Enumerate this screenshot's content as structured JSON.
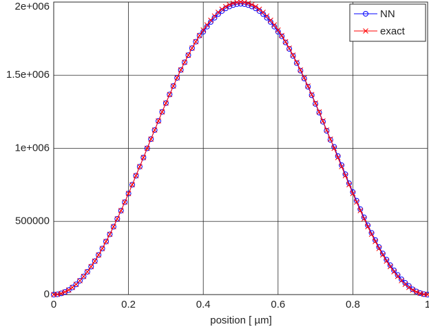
{
  "chart_data": {
    "type": "line",
    "xlabel": "position [  µm]",
    "x": [
      0,
      0.01,
      0.02,
      0.03,
      0.04,
      0.05,
      0.06,
      0.07,
      0.08,
      0.09,
      0.1,
      0.11,
      0.12,
      0.13,
      0.14,
      0.15,
      0.16,
      0.17,
      0.18,
      0.19,
      0.2,
      0.21,
      0.22,
      0.23,
      0.24,
      0.25,
      0.26,
      0.27,
      0.28,
      0.29,
      0.3,
      0.31,
      0.32,
      0.33,
      0.34,
      0.35,
      0.36,
      0.37,
      0.38,
      0.39,
      0.4,
      0.41,
      0.42,
      0.43,
      0.44,
      0.45,
      0.46,
      0.47,
      0.48,
      0.49,
      0.5,
      0.51,
      0.52,
      0.53,
      0.54,
      0.55,
      0.56,
      0.57,
      0.58,
      0.59,
      0.6,
      0.61,
      0.62,
      0.63,
      0.64,
      0.65,
      0.66,
      0.67,
      0.68,
      0.69,
      0.7,
      0.71,
      0.72,
      0.73,
      0.74,
      0.75,
      0.76,
      0.77,
      0.78,
      0.79,
      0.8,
      0.81,
      0.82,
      0.83,
      0.84,
      0.85,
      0.86,
      0.87,
      0.88,
      0.89,
      0.9,
      0.91,
      0.92,
      0.93,
      0.94,
      0.95,
      0.96,
      0.97,
      0.98,
      0.99,
      1
    ],
    "series": [
      {
        "name": "NN",
        "color": "#0000ff",
        "marker": "circle",
        "values": [
          0,
          2000,
          8000,
          18000,
          31000,
          49000,
          70000,
          95000,
          124000,
          156000,
          191000,
          229000,
          271000,
          315000,
          363000,
          412000,
          464000,
          518000,
          574000,
          632000,
          691000,
          751000,
          813000,
          875000,
          937000,
          1000000,
          1063000,
          1125000,
          1187000,
          1249000,
          1309000,
          1368000,
          1426000,
          1482000,
          1536000,
          1588000,
          1637000,
          1685000,
          1729000,
          1771000,
          1797000,
          1832000,
          1864000,
          1893000,
          1918000,
          1939000,
          1957000,
          1970000,
          1980000,
          1986000,
          1988000,
          1986000,
          1980000,
          1970000,
          1957000,
          1939000,
          1918000,
          1893000,
          1864000,
          1832000,
          1797000,
          1766000,
          1724000,
          1680000,
          1632000,
          1583000,
          1531000,
          1477000,
          1421000,
          1363000,
          1304000,
          1244000,
          1182000,
          1120000,
          1058000,
          1010000,
          947000,
          885000,
          823000,
          761000,
          701000,
          642000,
          584000,
          528000,
          474000,
          422000,
          373000,
          325000,
          281000,
          239000,
          201000,
          166000,
          134000,
          105000,
          80000,
          59000,
          36000,
          21000,
          10000,
          3000,
          0
        ]
      },
      {
        "name": "exact",
        "color": "#ff0000",
        "marker": "x",
        "values": [
          0,
          2000,
          8000,
          18000,
          31000,
          49000,
          70000,
          95000,
          124000,
          156000,
          191000,
          229000,
          271000,
          315000,
          363000,
          412000,
          464000,
          518000,
          574000,
          632000,
          691000,
          751000,
          813000,
          875000,
          937000,
          1000000,
          1063000,
          1125000,
          1187000,
          1249000,
          1309000,
          1368000,
          1426000,
          1482000,
          1536000,
          1588000,
          1637000,
          1685000,
          1729000,
          1771000,
          1809000,
          1844000,
          1876000,
          1905000,
          1930000,
          1951000,
          1969000,
          1982000,
          1992000,
          1998000,
          2000000,
          1998000,
          1992000,
          1982000,
          1969000,
          1951000,
          1930000,
          1905000,
          1876000,
          1844000,
          1809000,
          1771000,
          1729000,
          1685000,
          1637000,
          1588000,
          1536000,
          1482000,
          1426000,
          1368000,
          1309000,
          1249000,
          1187000,
          1125000,
          1063000,
          1000000,
          937000,
          875000,
          813000,
          751000,
          691000,
          632000,
          574000,
          518000,
          464000,
          412000,
          363000,
          315000,
          271000,
          229000,
          191000,
          156000,
          124000,
          95000,
          70000,
          49000,
          31000,
          18000,
          8000,
          2000,
          0
        ]
      }
    ],
    "xlim": [
      0,
      1
    ],
    "xticks": [
      0,
      0.2,
      0.4,
      0.6,
      0.8,
      1
    ],
    "ylim": [
      0,
      2000000
    ],
    "yticks": [
      0,
      500000,
      {
        "value": 1000000,
        "label": "1e+006"
      },
      {
        "value": 1500000,
        "label": "1.5e+006"
      },
      {
        "value": 2000000,
        "label": "2e+006"
      }
    ],
    "grid": true,
    "legend": "upper right"
  }
}
